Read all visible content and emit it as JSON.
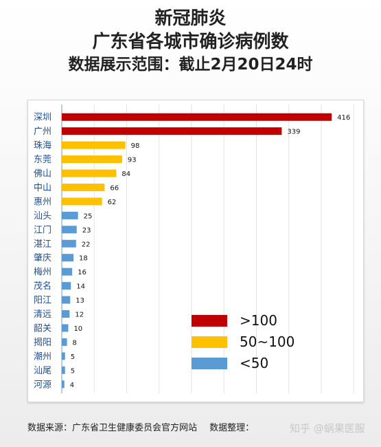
{
  "title": {
    "line1": "新冠肺炎",
    "line2": "广东省各城市确诊病例数",
    "line3": "数据展示范围：截止2月20日24时"
  },
  "chart_data": {
    "type": "bar",
    "orientation": "horizontal",
    "categories": [
      "深圳",
      "广州",
      "珠海",
      "东莞",
      "佛山",
      "中山",
      "惠州",
      "汕头",
      "江门",
      "湛江",
      "肇庆",
      "梅州",
      "茂名",
      "阳江",
      "清远",
      "韶关",
      "揭阳",
      "潮州",
      "汕尾",
      "河源"
    ],
    "values": [
      416,
      339,
      98,
      93,
      84,
      66,
      62,
      25,
      23,
      22,
      18,
      16,
      14,
      13,
      12,
      10,
      8,
      5,
      5,
      4
    ],
    "xlim": [
      0,
      450
    ],
    "grid": true,
    "legend_position": "bottom-right",
    "legend": [
      {
        "label": ">100",
        "color": "#c00000"
      },
      {
        "label": "50~100",
        "color": "#ffc000"
      },
      {
        "label": "<50",
        "color": "#5b9bd5"
      }
    ]
  },
  "footer": {
    "source": "数据来源：广东省卫生健康委员会官方网站",
    "organizer": "数据整理："
  },
  "watermark": "知乎 @蜗果医服"
}
